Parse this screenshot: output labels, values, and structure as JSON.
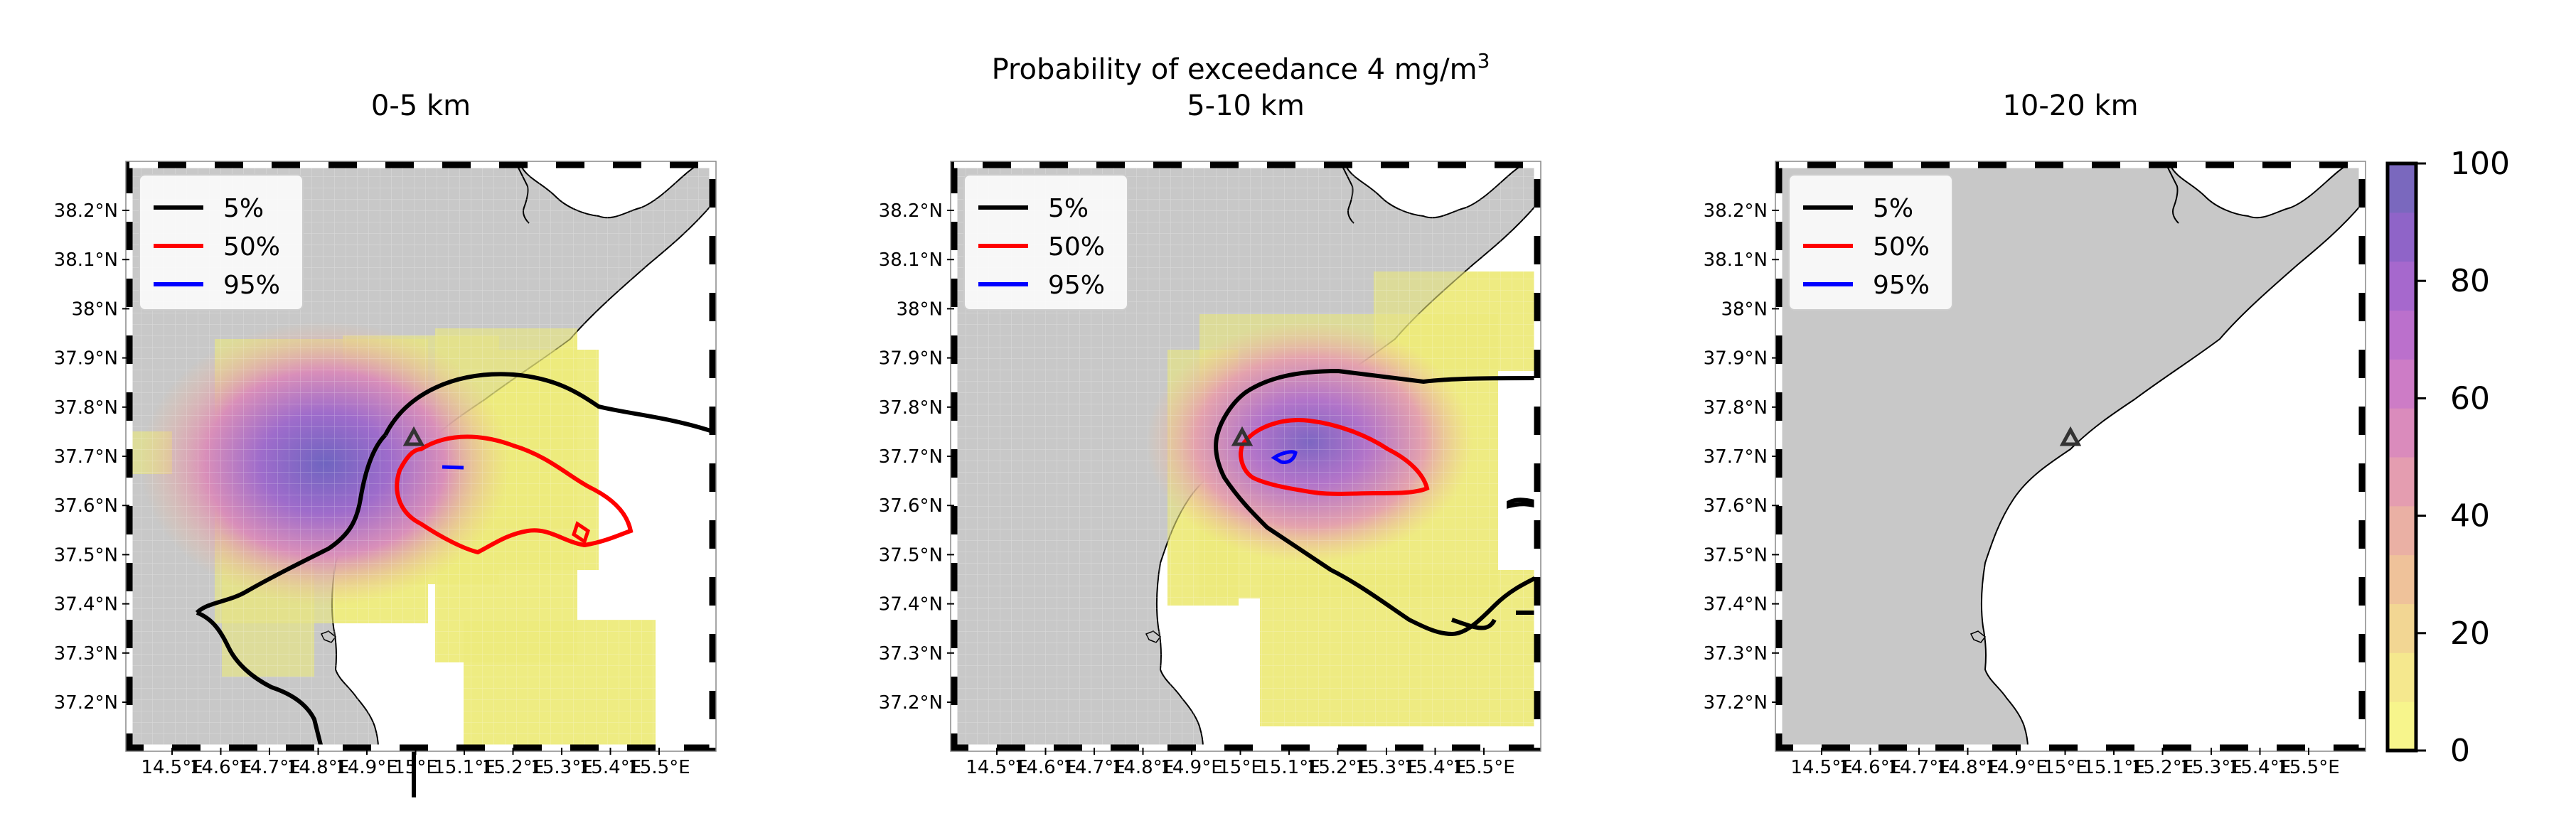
{
  "figure": {
    "suptitle_main": "Probability of exceedance 4 mg/m",
    "suptitle_sup": "3"
  },
  "panels": [
    {
      "title": "0-5 km"
    },
    {
      "title": "5-10 km"
    },
    {
      "title": "10-20 km"
    }
  ],
  "legend": {
    "entries": [
      {
        "label": "5%",
        "color": "#000000"
      },
      {
        "label": "50%",
        "color": "#ff0000"
      },
      {
        "label": "95%",
        "color": "#0000ff"
      }
    ]
  },
  "axes": {
    "lat_ticks": [
      "38.2°N",
      "38.1°N",
      "38°N",
      "37.9°N",
      "37.8°N",
      "37.7°N",
      "37.6°N",
      "37.5°N",
      "37.4°N",
      "37.3°N",
      "37.2°N"
    ],
    "lon_ticks": [
      "14.5°E",
      "14.6°E",
      "14.7°E",
      "14.8°E",
      "14.9°E",
      "15°E",
      "15.1°E",
      "15.2°E",
      "15.3°E",
      "15.4°E",
      "15.5°E"
    ]
  },
  "colorbar": {
    "ticks": [
      "100",
      "80",
      "60",
      "40",
      "20",
      "0"
    ],
    "colors": [
      "#f7f58c",
      "#f5e88e",
      "#f2d693",
      "#efc29a",
      "#eab0a4",
      "#e49db0",
      "#da8bbc",
      "#cd7cc6",
      "#bb70cc",
      "#a668cd",
      "#8f64c8",
      "#7a68be"
    ]
  },
  "colors": {
    "land": "#c8c8c8",
    "sea": "#ffffff",
    "contour_5": "#000000",
    "contour_50": "#ff0000",
    "contour_95": "#0000ff",
    "vent_marker": "#333333"
  }
}
